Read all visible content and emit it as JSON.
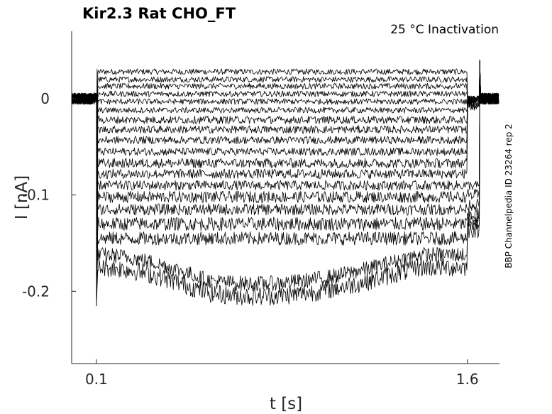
{
  "chart_data": {
    "type": "line",
    "title": "Kir2.3  Rat  CHO_FT",
    "subtitle": "25 °C  Inactivation",
    "side_note": "BBP Channelpedia ID 23264 rep 2",
    "xlabel": "t [s]",
    "ylabel": "I [nA]",
    "xlim": [
      0.0,
      1.73
    ],
    "ylim": [
      -0.275,
      0.07
    ],
    "x_ticks": [
      {
        "value": 0.1,
        "label": "0.1"
      },
      {
        "value": 1.6,
        "label": "1.6"
      }
    ],
    "y_ticks": [
      {
        "value": 0,
        "label": "0"
      },
      {
        "value": -0.1,
        "label": "-0.1"
      },
      {
        "value": -0.2,
        "label": "-0.2"
      }
    ],
    "grid": false,
    "legend": null,
    "pulse": {
      "start": 0.1,
      "end": 1.6,
      "post_end": 1.65
    },
    "sweeps": [
      {
        "baseline": 0.0,
        "level": 0.028,
        "post": 0.0,
        "noise": 0.003
      },
      {
        "baseline": 0.0,
        "level": 0.02,
        "post": 0.0,
        "noise": 0.003
      },
      {
        "baseline": 0.0,
        "level": 0.013,
        "post": 0.0,
        "noise": 0.003
      },
      {
        "baseline": 0.0,
        "level": 0.005,
        "post": 0.0,
        "noise": 0.003
      },
      {
        "baseline": 0.0,
        "level": -0.003,
        "post": -0.001,
        "noise": 0.003
      },
      {
        "baseline": 0.0,
        "level": -0.012,
        "post": -0.002,
        "noise": 0.003
      },
      {
        "baseline": 0.0,
        "level": -0.022,
        "post": -0.002,
        "noise": 0.004
      },
      {
        "baseline": 0.0,
        "level": -0.032,
        "post": -0.003,
        "noise": 0.004
      },
      {
        "baseline": 0.0,
        "level": -0.043,
        "post": -0.004,
        "noise": 0.004
      },
      {
        "baseline": 0.0,
        "level": -0.055,
        "post": -0.005,
        "noise": 0.004
      },
      {
        "baseline": 0.0,
        "level": -0.067,
        "post": -0.006,
        "noise": 0.005
      },
      {
        "baseline": 0.0,
        "level": -0.078,
        "post": -0.008,
        "noise": 0.005
      },
      {
        "baseline": 0.0,
        "level": -0.09,
        "post": -0.09,
        "noise": 0.005
      },
      {
        "baseline": 0.0,
        "level": -0.102,
        "post": -0.1,
        "noise": 0.006
      },
      {
        "baseline": 0.0,
        "level": -0.115,
        "post": -0.11,
        "noise": 0.006
      },
      {
        "baseline": 0.0,
        "level": -0.13,
        "post": -0.12,
        "noise": 0.007
      },
      {
        "baseline": 0.0,
        "level": -0.145,
        "post": -0.125,
        "noise": 0.007
      },
      {
        "baseline": 0.0,
        "level": -0.162,
        "post": -0.13,
        "noise": 0.008
      },
      {
        "baseline": 0.0,
        "level": -0.175,
        "post": -0.135,
        "noise": 0.01
      }
    ]
  }
}
